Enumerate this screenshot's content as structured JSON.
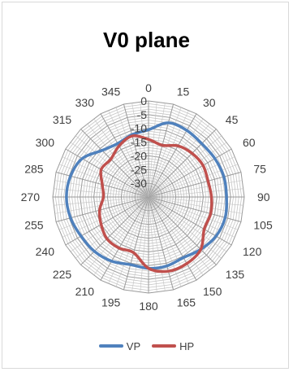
{
  "chart_data": {
    "type": "radar",
    "title": "V0 plane",
    "angle_labels": [
      "0",
      "15",
      "30",
      "45",
      "60",
      "75",
      "90",
      "105",
      "120",
      "135",
      "150",
      "165",
      "180",
      "195",
      "210",
      "225",
      "240",
      "255",
      "270",
      "285",
      "300",
      "315",
      "330",
      "345"
    ],
    "radial_labels": [
      "0",
      "-5",
      "-10",
      "-15",
      "-20",
      "-25",
      "-30"
    ],
    "radial_min": -35,
    "radial_max": 0,
    "legend_position": "bottom",
    "grid": true,
    "series": [
      {
        "name": "VP",
        "color": "#4f81bd",
        "values": [
          -10.5,
          -7,
          -7,
          -7.5,
          -7,
          -6.5,
          -6.5,
          -6,
          -6.5,
          -8,
          -9.5,
          -9,
          -9,
          -9.5,
          -8,
          -7,
          -6.5,
          -5.5,
          -5,
          -5.5,
          -7,
          -11,
          -12.5,
          -11.5
        ]
      },
      {
        "name": "HP",
        "color": "#c0504d",
        "values": [
          -14,
          -15.5,
          -13.5,
          -12.5,
          -12,
          -12.5,
          -12,
          -11.5,
          -11.5,
          -8,
          -7,
          -7,
          -9,
          -14,
          -13.5,
          -13.5,
          -15,
          -16.5,
          -18.5,
          -17.5,
          -15,
          -15.5,
          -13.5,
          -12
        ]
      }
    ]
  }
}
